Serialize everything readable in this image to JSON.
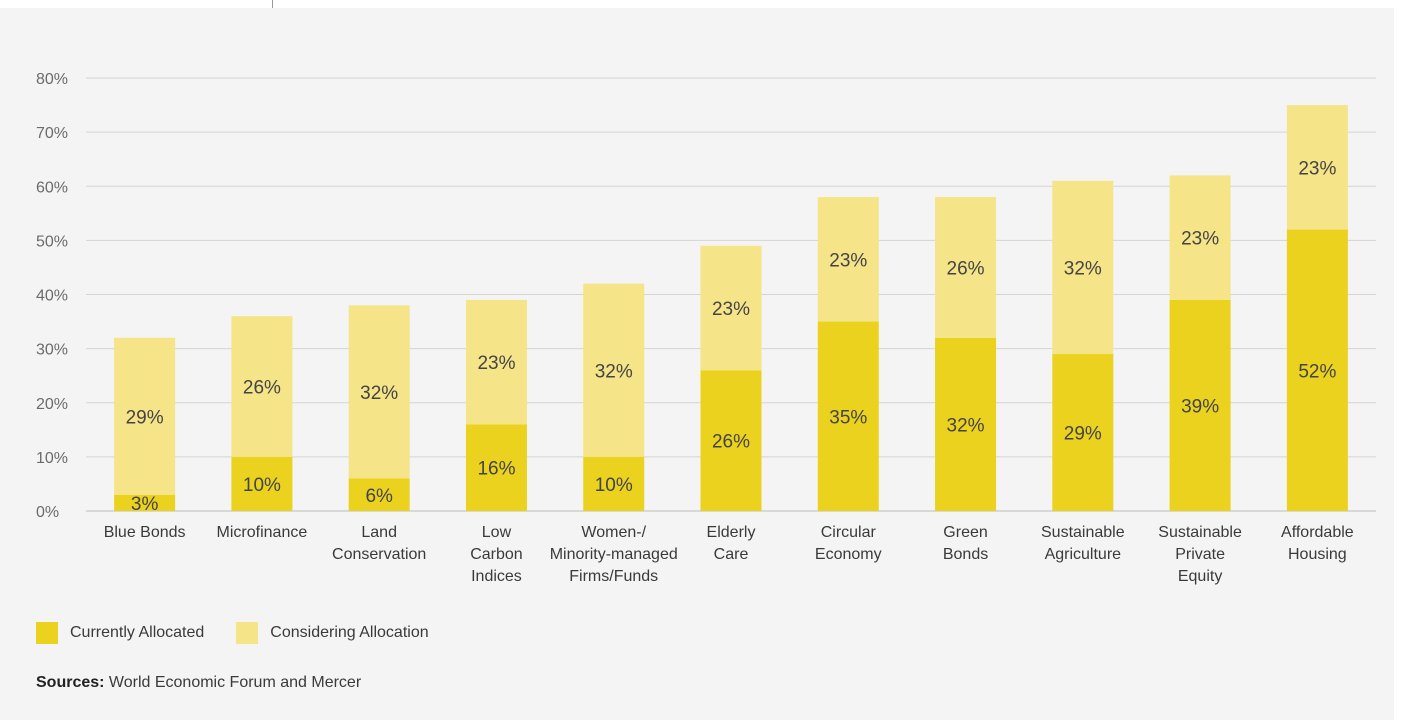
{
  "chart_data": {
    "type": "bar",
    "stacked": true,
    "categories": [
      [
        "Blue Bonds"
      ],
      [
        "Microfinance"
      ],
      [
        "Land",
        "Conservation"
      ],
      [
        "Low",
        "Carbon",
        "Indices"
      ],
      [
        "Women-/",
        "Minority-managed",
        "Firms/Funds"
      ],
      [
        "Elderly",
        "Care"
      ],
      [
        "Circular",
        "Economy"
      ],
      [
        "Green",
        "Bonds"
      ],
      [
        "Sustainable",
        "Agriculture"
      ],
      [
        "Sustainable",
        "Private",
        "Equity"
      ],
      [
        "Affordable",
        "Housing"
      ]
    ],
    "series": [
      {
        "name": "Currently Allocated",
        "color": "#ebd21e",
        "values": [
          3,
          10,
          6,
          16,
          10,
          26,
          35,
          32,
          29,
          39,
          52
        ]
      },
      {
        "name": "Considering Allocation",
        "color": "#f5e488",
        "values": [
          29,
          26,
          32,
          23,
          32,
          23,
          23,
          26,
          32,
          23,
          23
        ]
      }
    ],
    "value_suffix": "%",
    "yticks": [
      "0%",
      "10%",
      "20%",
      "30%",
      "40%",
      "50%",
      "60%",
      "70%",
      "80%"
    ],
    "ylim": [
      0,
      80
    ],
    "grid": true,
    "legend_position": "bottom-left"
  },
  "source": {
    "label": "Sources:",
    "text": " World Economic Forum and Mercer"
  }
}
